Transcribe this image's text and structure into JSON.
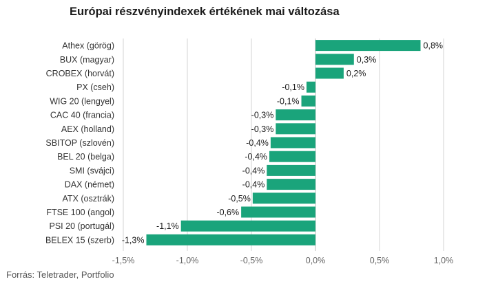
{
  "title": "Európai részvényindexek értékének mai változása",
  "source": "Forrás: Teletrader, Portfolio",
  "colors": {
    "bar": "#1aa47b",
    "grid": "#d3d3d3",
    "zero_line": "#bbbbbb"
  },
  "chart_data": {
    "type": "bar",
    "orientation": "horizontal",
    "title": "Európai részvényindexek értékének mai változása",
    "xlabel": "",
    "ylabel": "",
    "xlim": [
      -1.5,
      1.0
    ],
    "grid": true,
    "x_tick_labels": [
      "-1,5%",
      "-1,0%",
      "-0,5%",
      "0,0%",
      "0,5%",
      "1,0%"
    ],
    "x_tick_values": [
      -1.5,
      -1.0,
      -0.5,
      0.0,
      0.5,
      1.0
    ],
    "categories": [
      "Athex (görög)",
      "BUX (magyar)",
      "CROBEX (horvát)",
      "PX (cseh)",
      "WIG 20 (lengyel)",
      "CAC 40 (francia)",
      "AEX (holland)",
      "SBITOP (szlovén)",
      "BEL 20 (belga)",
      "SMI (svájci)",
      "DAX (német)",
      "ATX (osztrák)",
      "FTSE 100 (angol)",
      "PSI 20 (portugál)",
      "BELEX 15 (szerb)"
    ],
    "values": [
      0.82,
      0.3,
      0.22,
      -0.07,
      -0.11,
      -0.31,
      -0.31,
      -0.35,
      -0.36,
      -0.38,
      -0.38,
      -0.49,
      -0.58,
      -1.05,
      -1.32
    ],
    "data_labels": [
      "0,8%",
      "0,3%",
      "0,2%",
      "-0,1%",
      "-0,1%",
      "-0,3%",
      "-0,3%",
      "-0,4%",
      "-0,4%",
      "-0,4%",
      "-0,4%",
      "-0,5%",
      "-0,6%",
      "-1,1%",
      "-1,3%"
    ]
  }
}
